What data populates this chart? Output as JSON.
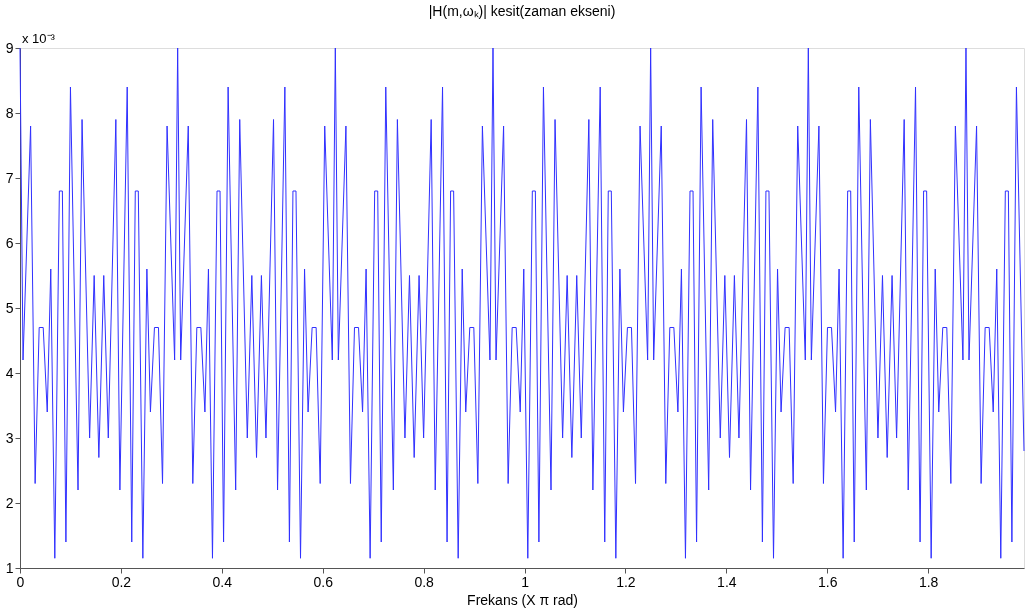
{
  "chart_data": {
    "type": "line",
    "title": "|H(m,ωₖ)| kesit(zaman ekseni)",
    "xlabel": "Frekans (X π rad)",
    "annotations": [
      "x 10⁻³"
    ],
    "xlim": [
      0,
      1.99
    ],
    "xticks": [
      0,
      0.2,
      0.4,
      0.6,
      0.8,
      1,
      1.2,
      1.4,
      1.6,
      1.8
    ],
    "ylim": [
      1,
      9
    ],
    "yticks": [
      1,
      2,
      3,
      4,
      5,
      6,
      7,
      8,
      9
    ],
    "grid": false,
    "marker": "none",
    "line_style": "solid",
    "series": [
      {
        "color": "#3030ff",
        "x": [
          0,
          0.006,
          0.021,
          0.03,
          0.038,
          0.046,
          0.054,
          0.061,
          0.069,
          0.078,
          0.084,
          0.091,
          0.1,
          0.115,
          0.123,
          0.138,
          0.147,
          0.1563,
          0.166,
          0.175,
          0.19,
          0.198,
          0.2125,
          0.2215,
          0.2285,
          0.2345,
          0.2435,
          0.2515,
          0.2585,
          0.2665,
          0.2745,
          0.2825,
          0.2915,
          0.3065,
          0.3125,
          0.3185,
          0.3335,
          0.3425,
          0.3505,
          0.3585,
          0.3665,
          0.3735,
          0.3815,
          0.3905,
          0.3965,
          0.4035,
          0.4125,
          0.4275,
          0.4355,
          0.4505,
          0.4595,
          0.4688,
          0.4785,
          0.4875,
          0.5025,
          0.5105,
          0.525,
          0.534,
          0.541,
          0.547,
          0.556,
          0.564,
          0.571,
          0.579,
          0.587,
          0.595,
          0.604,
          0.619,
          0.625,
          0.631,
          0.646,
          0.655,
          0.663,
          0.671,
          0.679,
          0.686,
          0.694,
          0.703,
          0.709,
          0.716,
          0.725,
          0.74,
          0.748,
          0.763,
          0.772,
          0.7813,
          0.791,
          0.8,
          0.815,
          0.823,
          0.8375,
          0.8465,
          0.8535,
          0.8595,
          0.8685,
          0.8765,
          0.8835,
          0.8915,
          0.8995,
          0.9075,
          0.9165,
          0.9315,
          0.9375,
          0.9435,
          0.9585,
          0.9675,
          0.9755,
          0.9835,
          0.9915,
          0.9985,
          1.0065,
          1.0155,
          1.0215,
          1.0285,
          1.0375,
          1.0525,
          1.0605,
          1.0755,
          1.0845,
          1.0938,
          1.1035,
          1.1125,
          1.1275,
          1.1355,
          1.15,
          1.159,
          1.166,
          1.172,
          1.181,
          1.189,
          1.196,
          1.204,
          1.212,
          1.22,
          1.229,
          1.244,
          1.25,
          1.256,
          1.271,
          1.28,
          1.288,
          1.296,
          1.304,
          1.311,
          1.319,
          1.328,
          1.334,
          1.341,
          1.35,
          1.365,
          1.373,
          1.388,
          1.397,
          1.4063,
          1.416,
          1.425,
          1.44,
          1.448,
          1.4625,
          1.4715,
          1.4785,
          1.4845,
          1.4935,
          1.5015,
          1.5085,
          1.5165,
          1.5245,
          1.5325,
          1.5415,
          1.5565,
          1.5625,
          1.5685,
          1.5835,
          1.5925,
          1.6005,
          1.6085,
          1.6165,
          1.6235,
          1.6315,
          1.6405,
          1.6465,
          1.6535,
          1.6625,
          1.6775,
          1.6855,
          1.7005,
          1.7095,
          1.7188,
          1.7285,
          1.7375,
          1.7525,
          1.7605,
          1.775,
          1.784,
          1.791,
          1.797,
          1.806,
          1.814,
          1.821,
          1.829,
          1.837,
          1.845,
          1.854,
          1.869,
          1.875,
          1.881,
          1.896,
          1.905,
          1.913,
          1.921,
          1.929,
          1.936,
          1.944,
          1.953,
          1.959,
          1.966,
          1.975,
          1.99
        ],
        "values": [
          9,
          4.2,
          7.8,
          2.3,
          4.7,
          4.7,
          3.4,
          5.6,
          1.15,
          6.8,
          6.8,
          1.4,
          8.4,
          2.2,
          7.9,
          3.0,
          5.5,
          2.7,
          5.5,
          3.0,
          7.9,
          2.2,
          8.4,
          1.4,
          6.8,
          6.8,
          1.15,
          5.6,
          3.4,
          4.7,
          4.7,
          2.3,
          7.8,
          4.2,
          9,
          4.2,
          7.8,
          2.3,
          4.7,
          4.7,
          3.4,
          5.6,
          1.15,
          6.8,
          6.8,
          1.4,
          8.4,
          2.2,
          7.9,
          3.0,
          5.5,
          2.7,
          5.5,
          3.0,
          7.9,
          2.2,
          8.4,
          1.4,
          6.8,
          6.8,
          1.15,
          5.6,
          3.4,
          4.7,
          4.7,
          2.3,
          7.8,
          4.2,
          9,
          4.2,
          7.8,
          2.3,
          4.7,
          4.7,
          3.4,
          5.6,
          1.15,
          6.8,
          6.8,
          1.4,
          8.4,
          2.2,
          7.9,
          3.0,
          5.5,
          2.7,
          5.5,
          3.0,
          7.9,
          2.2,
          8.4,
          1.4,
          6.8,
          6.8,
          1.15,
          5.6,
          3.4,
          4.7,
          4.7,
          2.3,
          7.8,
          4.2,
          9,
          4.2,
          7.8,
          2.3,
          4.7,
          4.7,
          3.4,
          5.6,
          1.15,
          6.8,
          6.8,
          1.4,
          8.4,
          2.2,
          7.9,
          3.0,
          5.5,
          2.7,
          5.5,
          3.0,
          7.9,
          2.2,
          8.4,
          1.4,
          6.8,
          6.8,
          1.15,
          5.6,
          3.4,
          4.7,
          4.7,
          2.3,
          7.8,
          4.2,
          9,
          4.2,
          7.8,
          2.3,
          4.7,
          4.7,
          3.4,
          5.6,
          1.15,
          6.8,
          6.8,
          1.4,
          8.4,
          2.2,
          7.9,
          3.0,
          5.5,
          2.7,
          5.5,
          3.0,
          7.9,
          2.2,
          8.4,
          1.4,
          6.8,
          6.8,
          1.15,
          5.6,
          3.4,
          4.7,
          4.7,
          2.3,
          7.8,
          4.2,
          9,
          4.2,
          7.8,
          2.3,
          4.7,
          4.7,
          3.4,
          5.6,
          1.15,
          6.8,
          6.8,
          1.4,
          8.4,
          2.2,
          7.9,
          3.0,
          5.5,
          2.7,
          5.5,
          3.0,
          7.9,
          2.2,
          8.4,
          1.4,
          6.8,
          6.8,
          1.15,
          5.6,
          3.4,
          4.7,
          4.7,
          2.3,
          7.8,
          4.2,
          9,
          4.2,
          7.8,
          2.3,
          4.7,
          4.7,
          3.4,
          5.6,
          1.15,
          6.8,
          6.8,
          1.4,
          8.4,
          2.8
        ]
      }
    ]
  }
}
